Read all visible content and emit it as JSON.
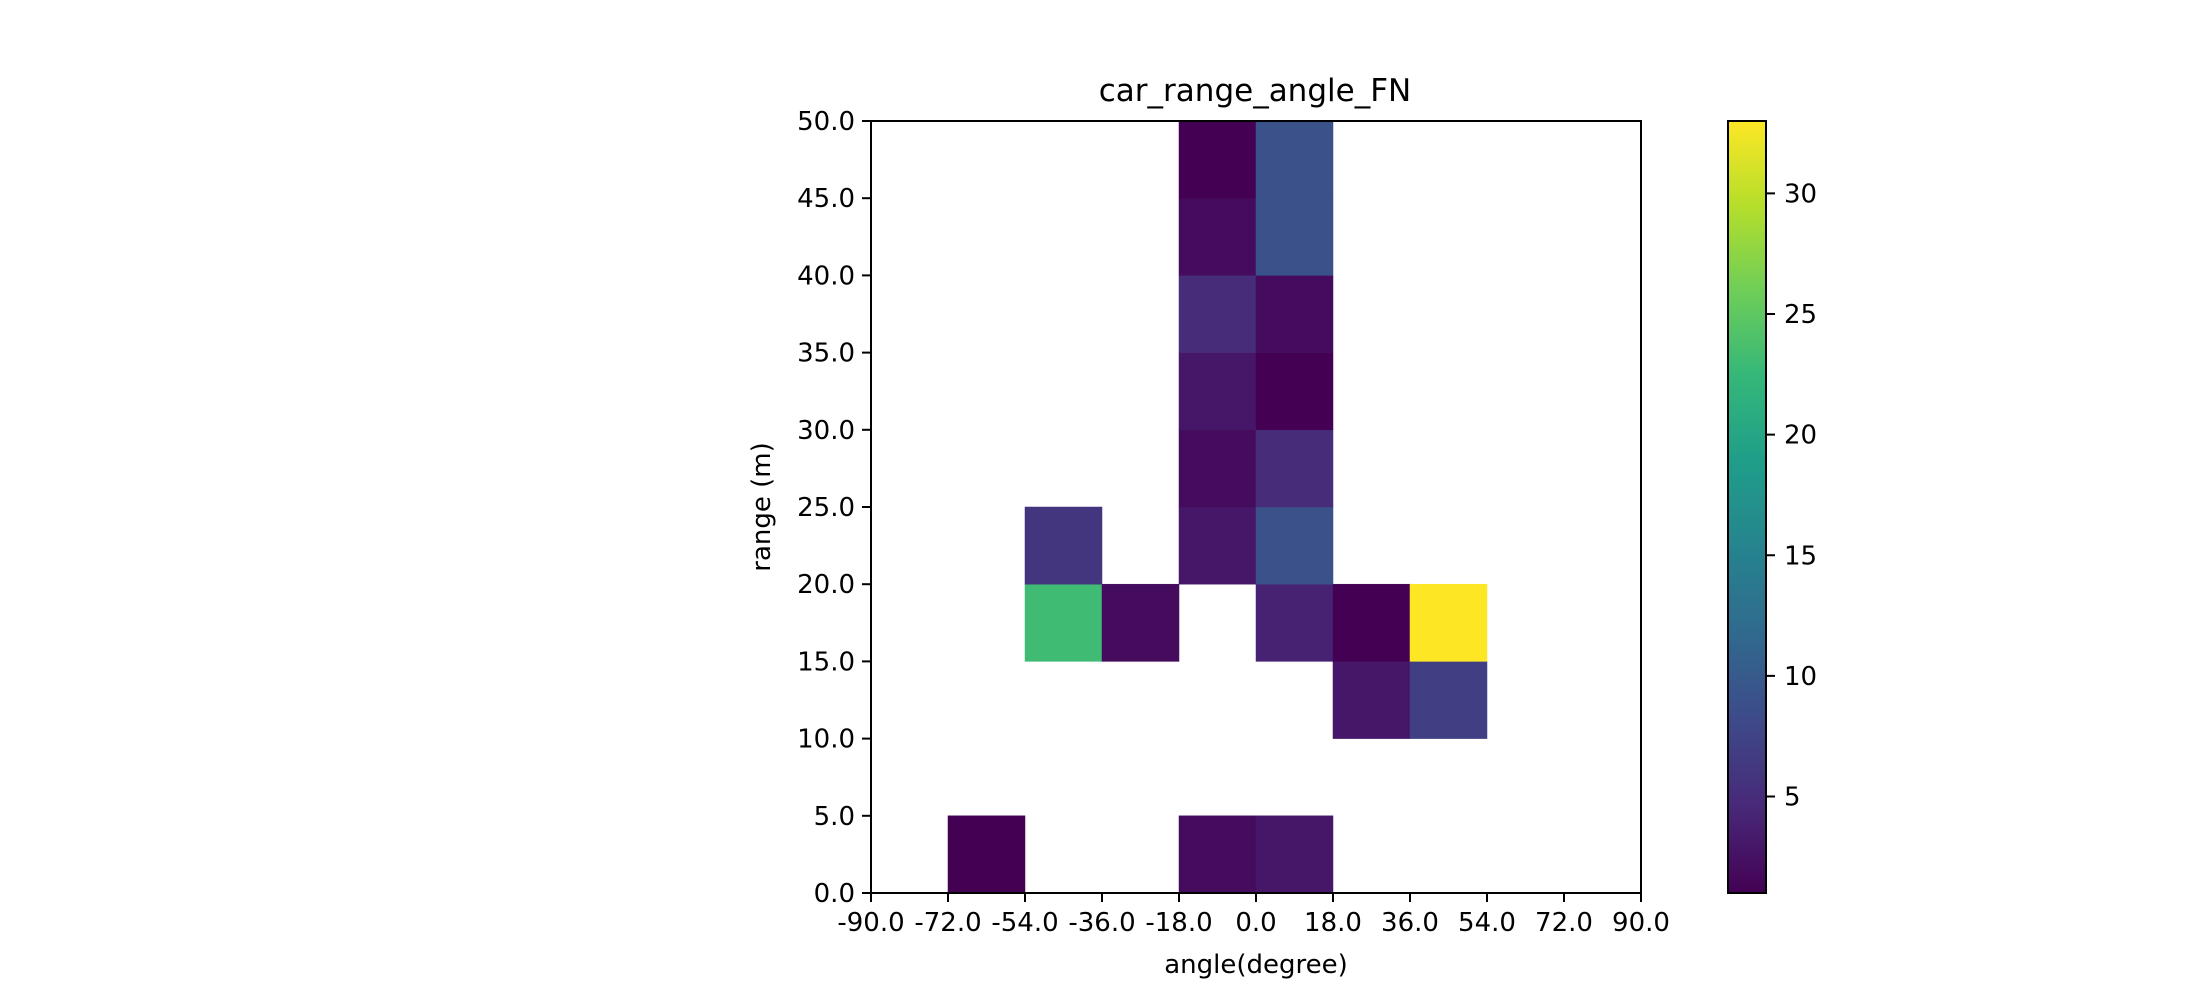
{
  "chart_data": {
    "type": "heatmap",
    "title": "car_range_angle_FN",
    "xlabel": "angle(degree)",
    "ylabel": "range (m)",
    "xlim": [
      -90,
      90
    ],
    "ylim": [
      0,
      50
    ],
    "x_edges": [
      -90,
      -72,
      -54,
      -36,
      -18,
      0,
      18,
      36,
      54,
      72,
      90
    ],
    "x_tick_labels": [
      "-90.0",
      "-72.0",
      "-54.0",
      "-36.0",
      "-18.0",
      "0.0",
      "18.0",
      "36.0",
      "54.0",
      "72.0",
      "90.0"
    ],
    "y_edges": [
      0,
      5,
      10,
      15,
      20,
      25,
      30,
      35,
      40,
      45,
      50
    ],
    "y_tick_labels": [
      "0.0",
      "5.0",
      "10.0",
      "15.0",
      "20.0",
      "25.0",
      "30.0",
      "35.0",
      "40.0",
      "45.0",
      "50.0"
    ],
    "colormap": "viridis",
    "colorbar": {
      "min": 1,
      "max": 33,
      "ticks": [
        5,
        10,
        15,
        20,
        25,
        30
      ]
    },
    "cells": [
      {
        "angle": [
          -72,
          -54
        ],
        "range": [
          0,
          5
        ],
        "value": 1
      },
      {
        "angle": [
          -18,
          0
        ],
        "range": [
          0,
          5
        ],
        "value": 2
      },
      {
        "angle": [
          0,
          18
        ],
        "range": [
          0,
          5
        ],
        "value": 3
      },
      {
        "angle": [
          18,
          36
        ],
        "range": [
          10,
          15
        ],
        "value": 3
      },
      {
        "angle": [
          36,
          54
        ],
        "range": [
          10,
          15
        ],
        "value": 7
      },
      {
        "angle": [
          -54,
          -36
        ],
        "range": [
          15,
          20
        ],
        "value": 23
      },
      {
        "angle": [
          -36,
          -18
        ],
        "range": [
          15,
          20
        ],
        "value": 2
      },
      {
        "angle": [
          0,
          18
        ],
        "range": [
          15,
          20
        ],
        "value": 4
      },
      {
        "angle": [
          18,
          36
        ],
        "range": [
          15,
          20
        ],
        "value": 1
      },
      {
        "angle": [
          36,
          54
        ],
        "range": [
          15,
          20
        ],
        "value": 33
      },
      {
        "angle": [
          -54,
          -36
        ],
        "range": [
          20,
          25
        ],
        "value": 6
      },
      {
        "angle": [
          -18,
          0
        ],
        "range": [
          20,
          25
        ],
        "value": 3
      },
      {
        "angle": [
          0,
          18
        ],
        "range": [
          20,
          25
        ],
        "value": 9
      },
      {
        "angle": [
          -18,
          0
        ],
        "range": [
          25,
          30
        ],
        "value": 2
      },
      {
        "angle": [
          0,
          18
        ],
        "range": [
          25,
          30
        ],
        "value": 5
      },
      {
        "angle": [
          -18,
          0
        ],
        "range": [
          30,
          35
        ],
        "value": 3
      },
      {
        "angle": [
          0,
          18
        ],
        "range": [
          30,
          35
        ],
        "value": 1
      },
      {
        "angle": [
          -18,
          0
        ],
        "range": [
          35,
          40
        ],
        "value": 5
      },
      {
        "angle": [
          0,
          18
        ],
        "range": [
          35,
          40
        ],
        "value": 2
      },
      {
        "angle": [
          -18,
          0
        ],
        "range": [
          40,
          45
        ],
        "value": 2
      },
      {
        "angle": [
          0,
          18
        ],
        "range": [
          40,
          45
        ],
        "value": 9
      },
      {
        "angle": [
          -18,
          0
        ],
        "range": [
          45,
          50
        ],
        "value": 1
      },
      {
        "angle": [
          0,
          18
        ],
        "range": [
          45,
          50
        ],
        "value": 9
      }
    ]
  }
}
